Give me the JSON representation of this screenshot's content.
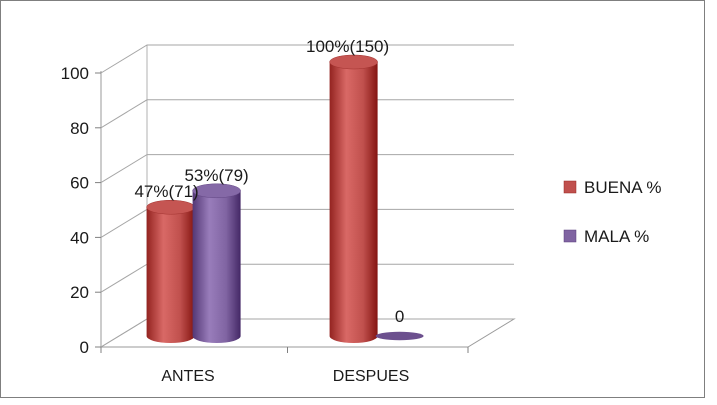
{
  "chart_data": {
    "type": "bar",
    "style": "3d-cylinder",
    "categories": [
      "ANTES",
      "DESPUES"
    ],
    "series": [
      {
        "name": "BUENA %",
        "color": "#c0504d",
        "values": [
          47,
          100
        ],
        "labels": [
          "47%(71)",
          "100%(150)"
        ]
      },
      {
        "name": "MALA %",
        "color": "#8064a2",
        "values": [
          53,
          0
        ],
        "labels": [
          "53%(79)",
          "0"
        ]
      }
    ],
    "title": "",
    "xlabel": "",
    "ylabel": "",
    "ylim": [
      0,
      100
    ],
    "yticks": [
      0,
      20,
      40,
      60,
      80,
      100
    ],
    "grid": true,
    "legend": "right"
  }
}
